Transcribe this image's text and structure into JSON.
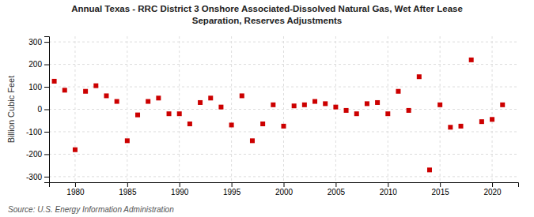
{
  "chart_data": {
    "type": "scatter",
    "title": "Annual Texas - RRC District 3 Onshore Associated-Dissolved Natural Gas, Wet After Lease\nSeparation, Reserves Adjustments",
    "ylabel": "Billion Cubic Feet",
    "annotations": [
      "Source: U.S. Energy Information Administration"
    ],
    "color": "#cc0000",
    "marker": "square",
    "grid": true,
    "xlim": [
      1977.5,
      2022.5
    ],
    "ylim": [
      -325,
      325
    ],
    "xticks": [
      1980,
      1985,
      1990,
      1995,
      2000,
      2005,
      2010,
      2015,
      2020
    ],
    "yticks": [
      -300,
      -200,
      -100,
      0,
      100,
      200,
      300
    ],
    "x": [
      1978,
      1979,
      1980,
      1981,
      1982,
      1983,
      1984,
      1985,
      1986,
      1987,
      1988,
      1989,
      1990,
      1991,
      1992,
      1993,
      1994,
      1995,
      1996,
      1997,
      1998,
      1999,
      2000,
      2001,
      2002,
      2003,
      2004,
      2005,
      2006,
      2007,
      2008,
      2009,
      2010,
      2011,
      2012,
      2013,
      2014,
      2015,
      2016,
      2017,
      2018,
      2019,
      2020,
      2021
    ],
    "values": [
      125,
      85,
      -180,
      80,
      105,
      60,
      35,
      -140,
      -25,
      35,
      50,
      -20,
      -20,
      -65,
      30,
      50,
      10,
      -70,
      60,
      -140,
      -65,
      20,
      -75,
      15,
      20,
      35,
      25,
      10,
      -5,
      -20,
      25,
      30,
      -20,
      80,
      -5,
      145,
      -270,
      20,
      -80,
      -75,
      220,
      -55,
      -45,
      20
    ]
  }
}
